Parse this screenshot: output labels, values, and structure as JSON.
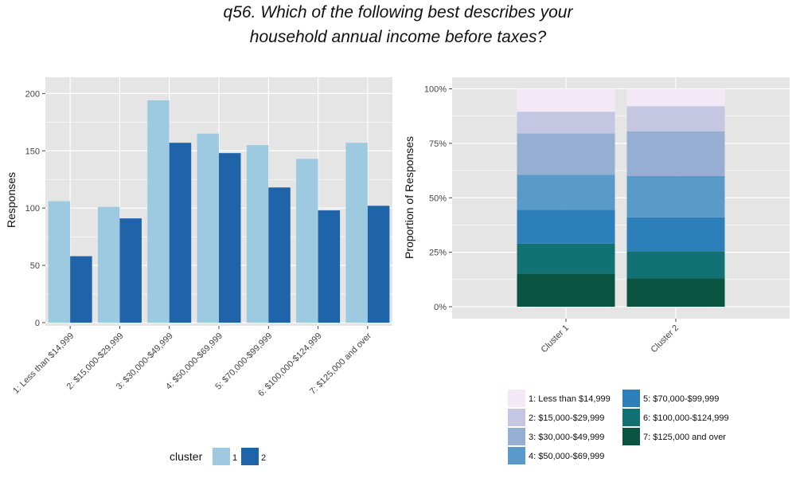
{
  "title": {
    "line1": "q56. Which of the following best describes your",
    "line2": "household annual income before taxes?"
  },
  "colors": {
    "panel_bg": "#e5e5e5",
    "grid": "#ffffff",
    "cluster_1": "#9ecae1",
    "cluster_2": "#1f64a8",
    "income_1": "#f3e8f5",
    "income_2": "#c5c6e1",
    "income_3": "#97aed3",
    "income_4": "#5a9ac8",
    "income_5": "#2c7fb8",
    "income_6": "#127273",
    "income_7": "#0b5442"
  },
  "chart_data": [
    {
      "type": "bar",
      "categories": [
        "1: Less than $14,999",
        "2: $15,000-$29,999",
        "3: $30,000-$49,999",
        "4: $50,000-$69,999",
        "5: $70,000-$99,999",
        "6: $100,000-$124,999",
        "7: $125,000 and over"
      ],
      "series": [
        {
          "name": "1",
          "values": [
            106,
            101,
            194,
            165,
            155,
            143,
            157
          ]
        },
        {
          "name": "2",
          "values": [
            58,
            91,
            157,
            148,
            118,
            98,
            102
          ]
        }
      ],
      "ylabel": "Responses",
      "ylim": [
        0,
        210
      ],
      "yticks": [
        "0",
        "50",
        "100",
        "150",
        "200"
      ],
      "legend_title": "cluster",
      "legend_position": "bottom",
      "grid": true
    },
    {
      "type": "bar",
      "stacked": true,
      "categories": [
        "Cluster 1",
        "Cluster 2"
      ],
      "series": [
        {
          "name": "1: Less than $14,999",
          "values": [
            0.105,
            0.08
          ]
        },
        {
          "name": "2: $15,000-$29,999",
          "values": [
            0.1,
            0.115
          ]
        },
        {
          "name": "3: $30,000-$49,999",
          "values": [
            0.19,
            0.205
          ]
        },
        {
          "name": "4: $50,000-$69,999",
          "values": [
            0.16,
            0.19
          ]
        },
        {
          "name": "5: $70,000-$99,999",
          "values": [
            0.155,
            0.155
          ]
        },
        {
          "name": "6: $100,000-$124,999",
          "values": [
            0.14,
            0.125
          ]
        },
        {
          "name": "7: $125,000 and over",
          "values": [
            0.15,
            0.13
          ]
        }
      ],
      "ylabel": "Proportion of Responses",
      "ylim": [
        0,
        1.05
      ],
      "yticks": [
        "0%",
        "25%",
        "50%",
        "75%",
        "100%"
      ],
      "legend_position": "bottom",
      "grid": true
    }
  ]
}
